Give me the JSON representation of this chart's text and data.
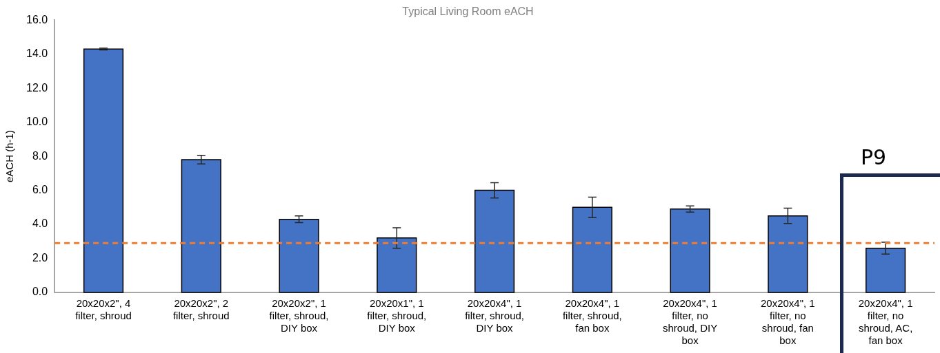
{
  "chart_data": {
    "type": "bar",
    "title": "Typical Living Room eACH",
    "ylabel": "eACH (h-1)",
    "categories": [
      "20x20x2\", 4 filter, shroud",
      "20x20x2\", 2 filter, shroud",
      "20x20x2\", 1 filter, shroud, DIY box",
      "20x20x1\", 1 filter, shroud, DIY box",
      "20x20x4\", 1 filter, shroud, DIY box",
      "20x20x4\", 1 filter, shroud, fan box",
      "20x20x4\", 1 filter, no shroud, DIY box",
      "20x20x4\", 1 filter, no shroud, fan box",
      "20x20x4\", 1 filter, no shroud, AC, fan box"
    ],
    "values": [
      14.3,
      7.8,
      4.3,
      3.2,
      6.0,
      5.0,
      4.9,
      4.5,
      2.6
    ],
    "errors": [
      0.05,
      0.25,
      0.2,
      0.6,
      0.45,
      0.6,
      0.18,
      0.45,
      0.35
    ],
    "color": "#4472c4",
    "ylim": [
      0,
      16
    ],
    "yticks": [
      {
        "value": 0,
        "label": "0.0"
      },
      {
        "value": 2,
        "label": "2.0"
      },
      {
        "value": 4,
        "label": "4.0"
      },
      {
        "value": 6,
        "label": "6.0"
      },
      {
        "value": 8,
        "label": "8.0"
      },
      {
        "value": 10,
        "label": "10.0"
      },
      {
        "value": 12,
        "label": "12.0"
      },
      {
        "value": 14,
        "label": "14.0"
      },
      {
        "value": 16,
        "label": "16.0"
      }
    ],
    "ref_lines": [
      {
        "axis": "y",
        "value": 2.9,
        "color": "#ed7d31",
        "line_style": "dashed"
      }
    ],
    "annotations": [
      "P9"
    ],
    "grid": false,
    "legend": false
  }
}
